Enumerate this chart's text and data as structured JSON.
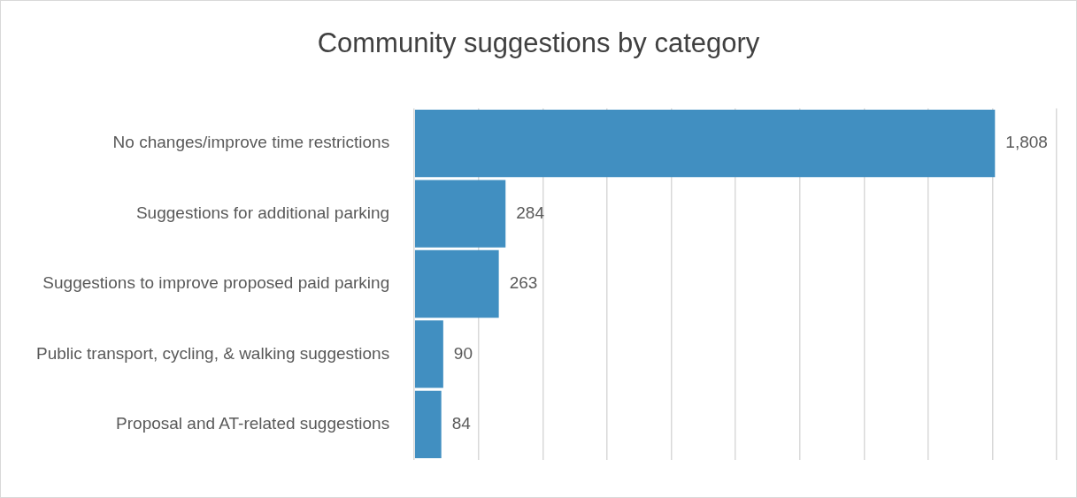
{
  "chart_data": {
    "type": "bar",
    "orientation": "horizontal",
    "title": "Community suggestions by category",
    "categories": [
      "No changes/improve time restrictions",
      "Suggestions for additional parking",
      "Suggestions to improve proposed paid parking",
      "Public transport, cycling, & walking suggestions",
      "Proposal and AT-related suggestions"
    ],
    "values": [
      1808,
      284,
      263,
      90,
      84
    ],
    "value_labels": [
      "1,808",
      "284",
      "263",
      "90",
      "84"
    ],
    "color": "#418fc1",
    "grid": "x",
    "tick_labels": "y"
  }
}
